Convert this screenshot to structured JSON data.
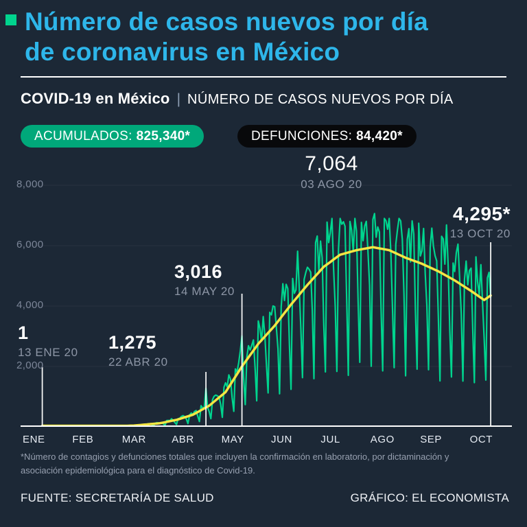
{
  "page": {
    "title_line1": "Número de casos nuevos por día",
    "title_line2": "de coronavirus en México",
    "header": {
      "bold": "COVID-19 en México",
      "separator": "|",
      "rest": "NÚMERO DE CASOS NUEVOS POR DÍA"
    },
    "badges": [
      {
        "label": "ACUMULADOS:",
        "value": "825,340*",
        "bg": "#00a87a"
      },
      {
        "label": "DEFUNCIONES:",
        "value": "84,420*",
        "bg": "#08090b"
      }
    ],
    "footnote_line1": "*Número de contagios y defunciones totales que incluyen la confirmación en laboratorio, por dictaminación y",
    "footnote_line2": "asociación epidemiológica para el diagnóstico de Covid-19.",
    "source": "FUENTE: SECRETARÍA DE SALUD",
    "credit": "GRÁFICO: EL ECONOMISTA"
  },
  "colors": {
    "background": "#1c2836",
    "title_cyan": "#2eb6ea",
    "accent_green": "#00d48e",
    "badge_green": "#00a87a",
    "badge_black": "#08090b",
    "trend_yellow": "#f4e543",
    "muted_gray": "#8d96a6",
    "axis_white": "#ffffff"
  },
  "chart_data": {
    "type": "line",
    "title": "COVID-19 en México | Número de casos nuevos por día",
    "x_axis": {
      "months": [
        "ENE",
        "FEB",
        "MAR",
        "ABR",
        "MAY",
        "JUN",
        "JUL",
        "AGO",
        "SEP",
        "OCT"
      ]
    },
    "y_axis": {
      "ticks": [
        {
          "label": "2,000",
          "value": 2000
        },
        {
          "label": "4,000",
          "value": 4000
        },
        {
          "label": "6,000",
          "value": 6000
        },
        {
          "label": "8,000",
          "value": 8000
        }
      ],
      "min": 0,
      "max": 8000
    },
    "series": [
      {
        "name": "Casos nuevos por día",
        "color": "#00d48e"
      },
      {
        "name": "Tendencia (promedio suavizado)",
        "color": "#f4e543"
      }
    ],
    "key_points": [
      {
        "label": "1",
        "date": "13 ENE 20",
        "day": 13,
        "value": 1
      },
      {
        "label": "1,275",
        "date": "22 ABR 20",
        "day": 113,
        "value": 1275
      },
      {
        "label": "3,016",
        "date": "14 MAY 20",
        "day": 135,
        "value": 3016
      },
      {
        "label": "7,064",
        "date": "03 AGO 20",
        "day": 216,
        "value": 7064
      },
      {
        "label": "4,295*",
        "date": "13 OCT 20",
        "day": 287,
        "value": 4295
      }
    ],
    "trend_anchors": [
      [
        13,
        1
      ],
      [
        40,
        2
      ],
      [
        55,
        10
      ],
      [
        70,
        45
      ],
      [
        85,
        120
      ],
      [
        95,
        230
      ],
      [
        105,
        400
      ],
      [
        115,
        700
      ],
      [
        125,
        1150
      ],
      [
        135,
        2000
      ],
      [
        145,
        2750
      ],
      [
        155,
        3350
      ],
      [
        165,
        4050
      ],
      [
        175,
        4700
      ],
      [
        185,
        5300
      ],
      [
        195,
        5700
      ],
      [
        205,
        5850
      ],
      [
        215,
        5950
      ],
      [
        225,
        5850
      ],
      [
        235,
        5600
      ],
      [
        245,
        5400
      ],
      [
        255,
        5150
      ],
      [
        265,
        4850
      ],
      [
        275,
        4500
      ],
      [
        283,
        4200
      ],
      [
        287,
        4350
      ]
    ],
    "weekly_pattern": [
      1.1,
      1.22,
      1.06,
      0.72,
      0.33,
      1.16,
      1.16
    ]
  }
}
